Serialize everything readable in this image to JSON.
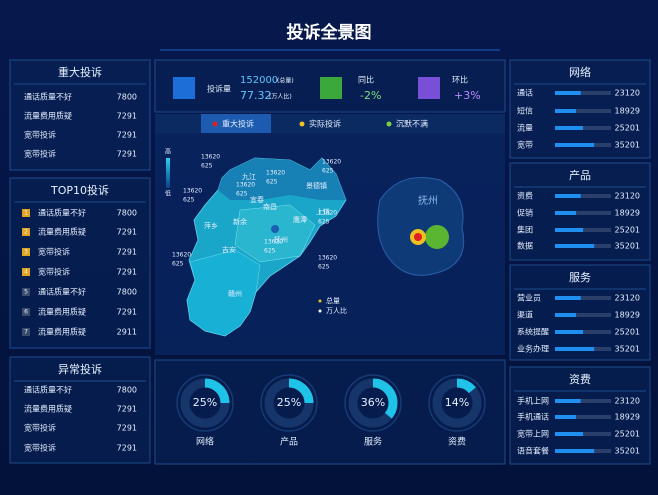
{
  "header": {
    "title": "投诉全景图"
  },
  "left_panels": [
    {
      "title": "重大投诉",
      "rows": [
        {
          "name": "通话质量不好",
          "value": 7800
        },
        {
          "name": "流量费用质疑",
          "value": 7291
        },
        {
          "name": "宽带投诉",
          "value": 7291
        },
        {
          "name": "宽带投诉",
          "value": 7291
        }
      ]
    },
    {
      "title": "TOP10投诉",
      "rows": [
        {
          "rank": 1,
          "name": "通话质量不好",
          "value": 7800
        },
        {
          "rank": 2,
          "name": "流量费用质疑",
          "value": 7291
        },
        {
          "rank": 3,
          "name": "宽带投诉",
          "value": 7291
        },
        {
          "rank": 4,
          "name": "宽带投诉",
          "value": 7291
        },
        {
          "rank": 5,
          "name": "通话质量不好",
          "value": 7800
        },
        {
          "rank": 6,
          "name": "流量费用质疑",
          "value": 7291
        },
        {
          "rank": 7,
          "name": "流量费用质疑",
          "value": 2911
        }
      ]
    },
    {
      "title": "异常投诉",
      "rows": [
        {
          "name": "通话质量不好",
          "value": 7800
        },
        {
          "name": "流量费用质疑",
          "value": 7291
        },
        {
          "name": "宽带投诉",
          "value": 7291
        },
        {
          "name": "宽带投诉",
          "value": 7291
        }
      ]
    }
  ],
  "stats": {
    "volume": {
      "label": "投诉量",
      "total": 152000,
      "total_unit": "(总量)",
      "ratio": 77.32,
      "ratio_unit": "(万人比)"
    },
    "yoy": {
      "label": "同比",
      "value": "-2%"
    },
    "mom": {
      "label": "环比",
      "value": "+3%"
    }
  },
  "tabs": [
    "重大投诉",
    "实际投诉",
    "沉默不满"
  ],
  "map": {
    "legend_high": "高",
    "legend_low": "低",
    "cities": [
      "九江",
      "景德镇",
      "宜春",
      "南昌",
      "上饶",
      "鹰潭",
      "新余",
      "萍乡",
      "抚州",
      "吉安",
      "赣州"
    ],
    "callouts": [
      {
        "total": 13620,
        "ratio": 625
      },
      {
        "total": 13620,
        "ratio": 625
      },
      {
        "total": 13620,
        "ratio": 625
      },
      {
        "total": 13620,
        "ratio": 625
      },
      {
        "total": 13620,
        "ratio": 625
      },
      {
        "total": 13620,
        "ratio": 625
      },
      {
        "total": 13620,
        "ratio": 625
      },
      {
        "total": 13620,
        "ratio": 625
      },
      {
        "total": 13620,
        "ratio": 625
      }
    ],
    "inset": "抚州",
    "legend": [
      "总量",
      "万人比"
    ]
  },
  "donuts": [
    {
      "name": "网络",
      "value": 25,
      "value_label": "25%"
    },
    {
      "name": "产品",
      "value": 25,
      "value_label": "25%"
    },
    {
      "name": "服务",
      "value": 36,
      "value_label": "36%"
    },
    {
      "name": "资费",
      "value": 14,
      "value_label": "14%"
    }
  ],
  "right_panels": [
    {
      "title": "网络",
      "rows": [
        {
          "name": "通话",
          "value": 23120
        },
        {
          "name": "短信",
          "value": 18929
        },
        {
          "name": "流量",
          "value": 25201
        },
        {
          "name": "宽带",
          "value": 35201
        }
      ]
    },
    {
      "title": "产品",
      "rows": [
        {
          "name": "资费",
          "value": 23120
        },
        {
          "name": "促销",
          "value": 18929
        },
        {
          "name": "集团",
          "value": 25201
        },
        {
          "name": "数据",
          "value": 35201
        }
      ]
    },
    {
      "title": "服务",
      "rows": [
        {
          "name": "营业员",
          "value": 23120
        },
        {
          "name": "渠道",
          "value": 18929
        },
        {
          "name": "系统提醒",
          "value": 25201
        },
        {
          "name": "业务办理",
          "value": 35201
        }
      ]
    },
    {
      "title": "资费",
      "rows": [
        {
          "name": "手机上网",
          "value": 23120
        },
        {
          "name": "手机通话",
          "value": 18929
        },
        {
          "name": "宽带上网",
          "value": 25201
        },
        {
          "name": "语音套餐",
          "value": 35201
        }
      ]
    }
  ]
}
